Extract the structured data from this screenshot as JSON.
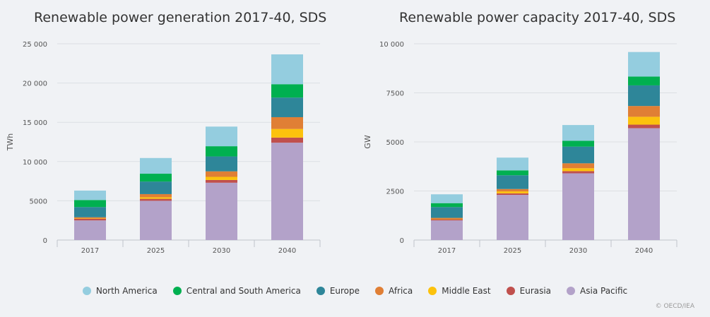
{
  "legend": [
    {
      "name": "North America",
      "color": "#94cddf"
    },
    {
      "name": "Central and South America",
      "color": "#00b050"
    },
    {
      "name": "Europe",
      "color": "#2e8699"
    },
    {
      "name": "Africa",
      "color": "#e07f35"
    },
    {
      "name": "Middle East",
      "color": "#fcc20d"
    },
    {
      "name": "Eurasia",
      "color": "#c0504d"
    },
    {
      "name": "Asia Pacific",
      "color": "#b3a2c9"
    }
  ],
  "copyright": "© OECD/IEA",
  "chart_data": [
    {
      "type": "bar",
      "stacked": true,
      "title": "Renewable power generation 2017-40, SDS",
      "ylabel": "TWh",
      "xlabel": "",
      "categories": [
        "2017",
        "2025",
        "2030",
        "2040"
      ],
      "ylim": [
        0,
        25000
      ],
      "yticks": [
        0,
        5000,
        10000,
        15000,
        20000,
        25000
      ],
      "ytick_labels": [
        "0",
        "5000",
        "10 000",
        "15 000",
        "20 000",
        "25 000"
      ],
      "grid": true,
      "series": [
        {
          "name": "Asia Pacific",
          "values": [
            2500,
            5000,
            7300,
            12400
          ]
        },
        {
          "name": "Eurasia",
          "values": [
            200,
            250,
            350,
            650
          ]
        },
        {
          "name": "Middle East",
          "values": [
            50,
            200,
            400,
            1100
          ]
        },
        {
          "name": "Africa",
          "values": [
            150,
            400,
            700,
            1500
          ]
        },
        {
          "name": "Europe",
          "values": [
            1300,
            1600,
            1900,
            2500
          ]
        },
        {
          "name": "Central and South America",
          "values": [
            900,
            1000,
            1300,
            1700
          ]
        },
        {
          "name": "North America",
          "values": [
            1200,
            2000,
            2500,
            3800
          ]
        }
      ]
    },
    {
      "type": "bar",
      "stacked": true,
      "title": "Renewable power capacity 2017-40, SDS",
      "ylabel": "GW",
      "xlabel": "",
      "categories": [
        "2017",
        "2025",
        "2030",
        "2040"
      ],
      "ylim": [
        0,
        10000
      ],
      "yticks": [
        0,
        2500,
        5000,
        7500,
        10000
      ],
      "ytick_labels": [
        "0",
        "2500",
        "5000",
        "7500",
        "10 000"
      ],
      "grid": true,
      "series": [
        {
          "name": "Asia Pacific",
          "values": [
            1000,
            2300,
            3400,
            5700
          ]
        },
        {
          "name": "Eurasia",
          "values": [
            60,
            80,
            110,
            180
          ]
        },
        {
          "name": "Middle East",
          "values": [
            20,
            100,
            150,
            400
          ]
        },
        {
          "name": "Africa",
          "values": [
            50,
            120,
            250,
            550
          ]
        },
        {
          "name": "Europe",
          "values": [
            550,
            700,
            850,
            1050
          ]
        },
        {
          "name": "Central and South America",
          "values": [
            200,
            250,
            300,
            450
          ]
        },
        {
          "name": "North America",
          "values": [
            450,
            650,
            800,
            1250
          ]
        }
      ]
    }
  ]
}
